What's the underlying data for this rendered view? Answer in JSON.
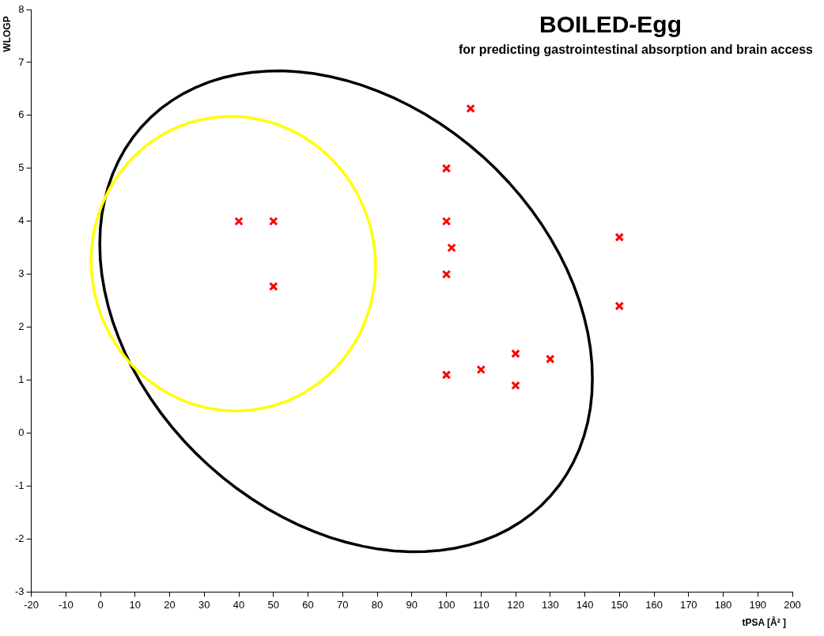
{
  "chart_data": {
    "type": "scatter",
    "title": "BOILED-Egg",
    "subtitle": "for predicting gastrointestinal absorption and brain access",
    "xlabel": "tPSA [Å² ]",
    "ylabel": "WLOGP",
    "xlim": [
      -20,
      200
    ],
    "xticks": [
      -20,
      -10,
      0,
      10,
      20,
      30,
      40,
      50,
      60,
      70,
      80,
      90,
      100,
      110,
      120,
      130,
      140,
      150,
      160,
      170,
      180,
      190,
      200
    ],
    "ylim": [
      -3,
      8
    ],
    "yticks": [
      -3,
      -2,
      -1,
      0,
      1,
      2,
      3,
      4,
      5,
      6,
      7,
      8
    ],
    "grid": false,
    "legend": false,
    "series": [
      {
        "type": "scatter",
        "marker": "cross",
        "color": "#ff0000",
        "x": [
          40,
          50,
          50,
          100,
          100,
          101.5,
          100,
          107,
          150,
          150,
          120,
          130,
          110,
          100,
          120
        ],
        "values": [
          4,
          4,
          2.77,
          5,
          4,
          3.5,
          3,
          6.13,
          3.7,
          2.4,
          1.5,
          1.4,
          1.2,
          1.1,
          0.9
        ]
      }
    ]
  }
}
